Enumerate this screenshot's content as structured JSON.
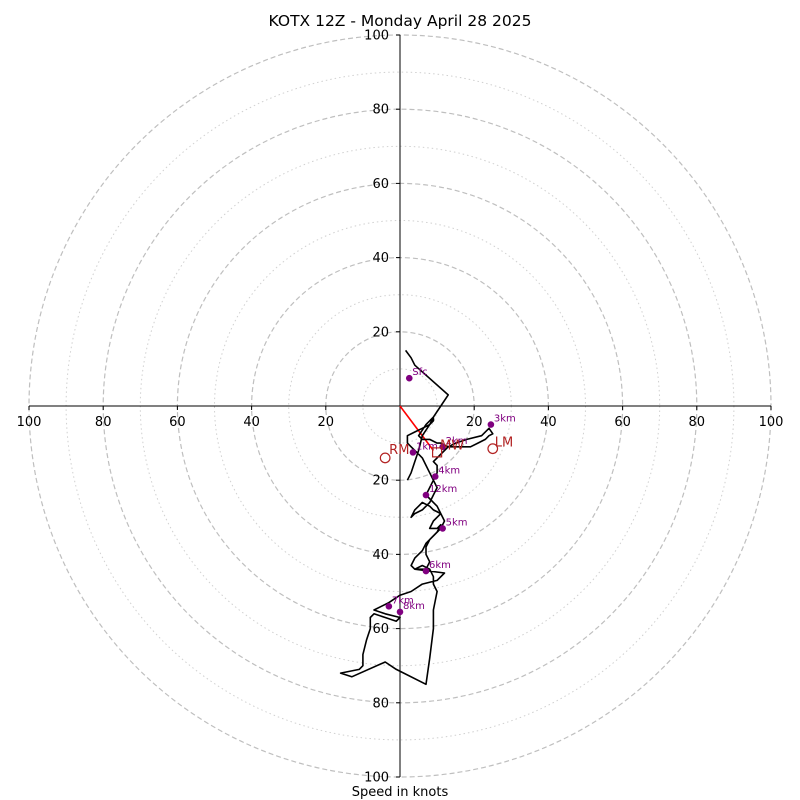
{
  "chart_data": {
    "type": "scatter",
    "title": "KOTX 12Z - Monday April 28 2025",
    "xlabel": "Speed in knots",
    "ylabel": "",
    "xlim": [
      -100,
      100
    ],
    "ylim": [
      -100,
      100
    ],
    "ring_major": [
      20,
      40,
      60,
      80,
      100
    ],
    "ring_minor": [
      10,
      30,
      50,
      70,
      90
    ],
    "x_ticks": [
      {
        "value": -100,
        "label": "100"
      },
      {
        "value": -80,
        "label": "80"
      },
      {
        "value": -60,
        "label": "60"
      },
      {
        "value": -40,
        "label": "40"
      },
      {
        "value": -20,
        "label": "20"
      },
      {
        "value": 20,
        "label": "20"
      },
      {
        "value": 40,
        "label": "40"
      },
      {
        "value": 60,
        "label": "60"
      },
      {
        "value": 80,
        "label": "80"
      },
      {
        "value": 100,
        "label": "100"
      }
    ],
    "y_ticks": [
      {
        "value": 100,
        "label": "100"
      },
      {
        "value": 80,
        "label": "80"
      },
      {
        "value": 60,
        "label": "60"
      },
      {
        "value": 40,
        "label": "40"
      },
      {
        "value": 20,
        "label": "20"
      },
      {
        "value": -20,
        "label": "20"
      },
      {
        "value": -40,
        "label": "40"
      },
      {
        "value": -60,
        "label": "60"
      },
      {
        "value": -80,
        "label": "80"
      },
      {
        "value": -100,
        "label": "100"
      }
    ],
    "hodograph": [
      [
        1.5,
        15
      ],
      [
        3,
        13
      ],
      [
        4,
        11
      ],
      [
        13,
        3
      ],
      [
        11,
        0
      ],
      [
        9,
        -3
      ],
      [
        7,
        -5
      ],
      [
        5,
        -8
      ],
      [
        6,
        -9
      ],
      [
        8,
        -9
      ],
      [
        10,
        -10
      ],
      [
        11,
        -10
      ],
      [
        13,
        -11
      ],
      [
        16,
        -11
      ],
      [
        19,
        -11
      ],
      [
        21,
        -10
      ],
      [
        23,
        -9
      ],
      [
        24,
        -8
      ],
      [
        25,
        -7.5
      ],
      [
        24,
        -6
      ],
      [
        22,
        -8
      ],
      [
        18,
        -9
      ],
      [
        15,
        -10
      ],
      [
        13,
        -11
      ],
      [
        12,
        -12
      ],
      [
        10,
        -14
      ],
      [
        9,
        -15
      ],
      [
        10,
        -16
      ],
      [
        10,
        -18
      ],
      [
        9,
        -20
      ],
      [
        8,
        -22
      ],
      [
        7,
        -24
      ],
      [
        10,
        -27
      ],
      [
        11,
        -29
      ],
      [
        9,
        -31
      ],
      [
        8,
        -33
      ],
      [
        10,
        -33
      ],
      [
        11,
        -32
      ],
      [
        10,
        -34
      ],
      [
        8,
        -36
      ],
      [
        7,
        -38
      ],
      [
        7,
        -40
      ],
      [
        8,
        -42
      ],
      [
        7,
        -44
      ],
      [
        4,
        -44
      ],
      [
        12,
        -45
      ],
      [
        10,
        -47
      ],
      [
        6,
        -48
      ],
      [
        3,
        -50
      ],
      [
        0,
        -51
      ],
      [
        -3,
        -53
      ],
      [
        -5,
        -54
      ],
      [
        -7,
        -55
      ],
      [
        -4,
        -56
      ],
      [
        0,
        -57
      ],
      [
        -1,
        -58
      ],
      [
        -4,
        -57
      ],
      [
        -7,
        -56
      ],
      [
        -8,
        -57
      ],
      [
        -8,
        -60
      ],
      [
        -9,
        -63
      ],
      [
        -10,
        -67
      ],
      [
        -10,
        -70
      ],
      [
        -11,
        -71
      ],
      [
        -16,
        -72
      ],
      [
        -13,
        -73
      ],
      [
        -4,
        -69
      ],
      [
        -1,
        -71
      ],
      [
        7,
        -75
      ],
      [
        8,
        -68
      ],
      [
        9,
        -60
      ],
      [
        9,
        -55
      ],
      [
        10,
        -50
      ],
      [
        9,
        -48
      ],
      [
        9,
        -46
      ],
      [
        8,
        -44
      ],
      [
        6,
        -43
      ],
      [
        4,
        -44
      ],
      [
        3,
        -43
      ],
      [
        4,
        -41
      ],
      [
        6,
        -39
      ],
      [
        7,
        -37
      ],
      [
        9,
        -35
      ],
      [
        11,
        -33
      ],
      [
        12,
        -31
      ],
      [
        11,
        -29
      ],
      [
        9,
        -28
      ],
      [
        8,
        -27
      ],
      [
        6,
        -26
      ],
      [
        5,
        -27
      ],
      [
        4,
        -28
      ],
      [
        3,
        -30
      ],
      [
        4,
        -29
      ],
      [
        6,
        -28
      ],
      [
        8,
        -26
      ],
      [
        9,
        -24
      ],
      [
        10,
        -22
      ],
      [
        9,
        -20
      ],
      [
        8,
        -18
      ],
      [
        7,
        -16
      ],
      [
        6,
        -14
      ],
      [
        5,
        -13
      ],
      [
        4,
        -12
      ],
      [
        3,
        -11
      ],
      [
        2,
        -10
      ],
      [
        2,
        -8
      ],
      [
        4,
        -7
      ],
      [
        6,
        -6
      ],
      [
        8,
        -5
      ],
      [
        9,
        -4
      ],
      [
        9,
        -3
      ],
      [
        8,
        -5
      ],
      [
        6,
        -8
      ],
      [
        5,
        -12
      ],
      [
        4,
        -15
      ],
      [
        3,
        -18
      ],
      [
        2,
        -20
      ]
    ],
    "height_markers": [
      {
        "label": "Sfc",
        "u": 2.5,
        "v": 7.5
      },
      {
        "label": "1km",
        "u": 3.5,
        "v": -12.5
      },
      {
        "label": "2km",
        "u": 11.5,
        "v": -11
      },
      {
        "label": "3km",
        "u": 24.5,
        "v": -5
      },
      {
        "label": "4km",
        "u": 9.5,
        "v": -19
      },
      {
        "label": "12km",
        "u": 7,
        "v": -24
      },
      {
        "label": "5km",
        "u": 11.5,
        "v": -33
      },
      {
        "label": "6km",
        "u": 7,
        "v": -44.5
      },
      {
        "label": "7km",
        "u": -3,
        "v": -54
      },
      {
        "label": "8km",
        "u": 0,
        "v": -55.5
      }
    ],
    "storm_motion": {
      "rm_label": "RM",
      "rm": [
        -4,
        -14
      ],
      "lm_label": "LM",
      "lm": [
        25,
        -11.5
      ],
      "mw_label": "MW",
      "mw": [
        10,
        -12.5
      ],
      "shear_line": [
        [
          0,
          0
        ],
        [
          9,
          -12
        ]
      ]
    },
    "colors": {
      "hodograph": "#000000",
      "marker": "#800080",
      "storm_motion": "#b22222",
      "shear_vector": "#ff0000",
      "ring": "#bfbfbf"
    }
  }
}
